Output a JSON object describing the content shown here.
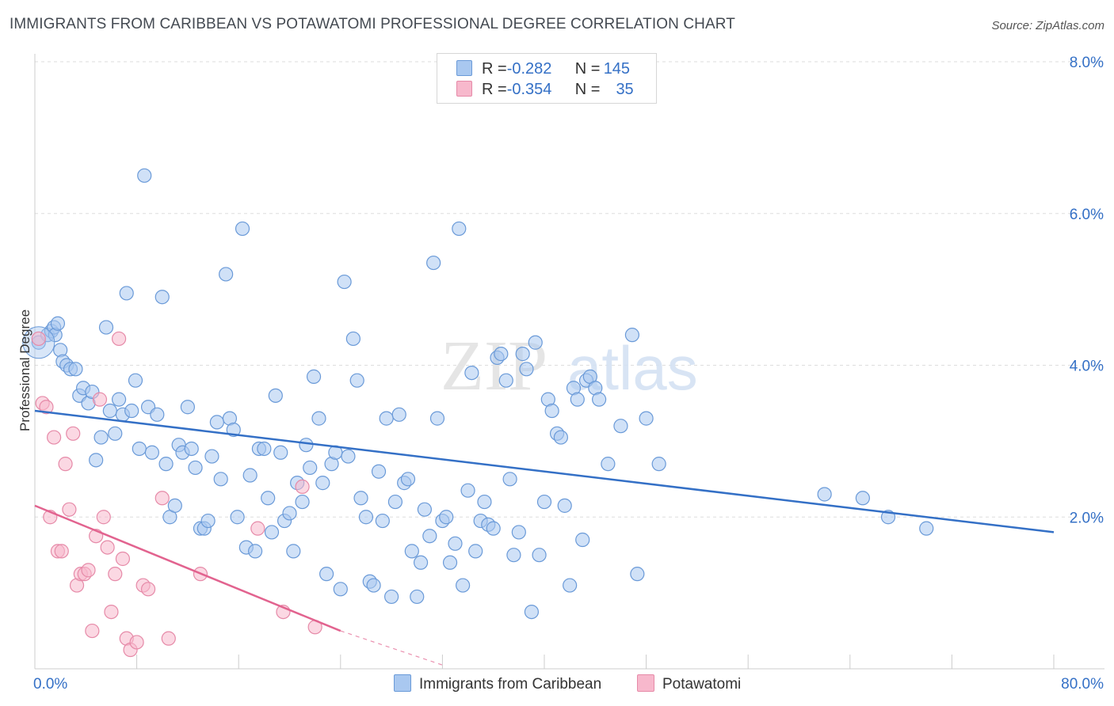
{
  "title": "IMMIGRANTS FROM CARIBBEAN VS POTAWATOMI PROFESSIONAL DEGREE CORRELATION CHART",
  "source": "Source: ZipAtlas.com",
  "watermark": {
    "zip": "ZIP",
    "atlas": "atlas"
  },
  "legend": {
    "rows": [
      {
        "r_label": "R = ",
        "r_value": "-0.282",
        "n_label": "N = ",
        "n_value": "145"
      },
      {
        "r_label": "R = ",
        "r_value": "-0.354",
        "n_label": "N = ",
        "n_value": "35"
      }
    ]
  },
  "colors": {
    "caribbean_fill": "#a9c8f0",
    "caribbean_stroke": "#6a9ad8",
    "caribbean_line": "#3470c6",
    "potawatomi_fill": "#f7b8cc",
    "potawatomi_stroke": "#e68aa8",
    "potawatomi_line": "#e2638f",
    "tick_label": "#3470c6",
    "grid": "#dddddd"
  },
  "chart_data": {
    "type": "scatter",
    "title": "IMMIGRANTS FROM CARIBBEAN VS POTAWATOMI PROFESSIONAL DEGREE CORRELATION CHART",
    "xlabel": "",
    "ylabel": "Professional Degree",
    "xlim": [
      0,
      80
    ],
    "ylim": [
      0,
      8
    ],
    "x_tick_labels": [
      "0.0%",
      "80.0%"
    ],
    "y_ticks": [
      2,
      4,
      6,
      8
    ],
    "y_tick_labels": [
      "2.0%",
      "4.0%",
      "6.0%",
      "8.0%"
    ],
    "grid": true,
    "legend_position": "top-center",
    "series": [
      {
        "name": "Immigrants from Caribbean",
        "trend": {
          "x": [
            0,
            80
          ],
          "y": [
            3.4,
            1.8
          ]
        },
        "points": [
          [
            0.3,
            4.3
          ],
          [
            1.0,
            4.4
          ],
          [
            1.3,
            4.45
          ],
          [
            1.5,
            4.5
          ],
          [
            1.6,
            4.4
          ],
          [
            1.8,
            4.55
          ],
          [
            2.0,
            4.2
          ],
          [
            2.2,
            4.05
          ],
          [
            2.5,
            4.0
          ],
          [
            2.8,
            3.95
          ],
          [
            3.2,
            3.95
          ],
          [
            3.5,
            3.6
          ],
          [
            3.8,
            3.7
          ],
          [
            4.2,
            3.5
          ],
          [
            4.5,
            3.65
          ],
          [
            4.8,
            2.75
          ],
          [
            5.2,
            3.05
          ],
          [
            5.6,
            4.5
          ],
          [
            5.9,
            3.4
          ],
          [
            6.3,
            3.1
          ],
          [
            6.6,
            3.55
          ],
          [
            6.9,
            3.35
          ],
          [
            7.2,
            4.95
          ],
          [
            7.6,
            3.4
          ],
          [
            7.9,
            3.8
          ],
          [
            8.2,
            2.9
          ],
          [
            8.6,
            6.5
          ],
          [
            8.9,
            3.45
          ],
          [
            9.2,
            2.85
          ],
          [
            9.6,
            3.35
          ],
          [
            10.0,
            4.9
          ],
          [
            10.3,
            2.7
          ],
          [
            10.6,
            2.0
          ],
          [
            11.0,
            2.15
          ],
          [
            11.3,
            2.95
          ],
          [
            11.6,
            2.85
          ],
          [
            12.0,
            3.45
          ],
          [
            12.3,
            2.9
          ],
          [
            12.6,
            2.65
          ],
          [
            13.0,
            1.85
          ],
          [
            13.3,
            1.85
          ],
          [
            13.6,
            1.95
          ],
          [
            13.9,
            2.8
          ],
          [
            14.3,
            3.25
          ],
          [
            14.6,
            2.5
          ],
          [
            15.0,
            5.2
          ],
          [
            15.3,
            3.3
          ],
          [
            15.6,
            3.15
          ],
          [
            15.9,
            2.0
          ],
          [
            16.3,
            5.8
          ],
          [
            16.6,
            1.6
          ],
          [
            16.9,
            2.55
          ],
          [
            17.3,
            1.55
          ],
          [
            17.6,
            2.9
          ],
          [
            18.0,
            2.9
          ],
          [
            18.3,
            2.25
          ],
          [
            18.6,
            1.8
          ],
          [
            18.9,
            3.6
          ],
          [
            19.3,
            2.85
          ],
          [
            19.6,
            1.95
          ],
          [
            20.0,
            2.05
          ],
          [
            20.3,
            1.55
          ],
          [
            20.6,
            2.45
          ],
          [
            21.0,
            2.2
          ],
          [
            21.3,
            2.95
          ],
          [
            21.6,
            2.65
          ],
          [
            21.9,
            3.85
          ],
          [
            22.3,
            3.3
          ],
          [
            22.6,
            2.45
          ],
          [
            22.9,
            1.25
          ],
          [
            23.3,
            2.7
          ],
          [
            23.6,
            2.85
          ],
          [
            24.0,
            1.05
          ],
          [
            24.3,
            5.1
          ],
          [
            24.6,
            2.8
          ],
          [
            25.0,
            4.35
          ],
          [
            25.3,
            3.8
          ],
          [
            25.6,
            2.25
          ],
          [
            26.0,
            2.0
          ],
          [
            26.3,
            1.15
          ],
          [
            26.6,
            1.1
          ],
          [
            27.0,
            2.6
          ],
          [
            27.3,
            1.95
          ],
          [
            27.6,
            3.3
          ],
          [
            28.0,
            0.95
          ],
          [
            28.3,
            2.2
          ],
          [
            28.6,
            3.35
          ],
          [
            29.0,
            2.45
          ],
          [
            29.3,
            2.5
          ],
          [
            29.6,
            1.55
          ],
          [
            30.0,
            0.95
          ],
          [
            30.3,
            1.4
          ],
          [
            30.6,
            2.1
          ],
          [
            31.0,
            1.75
          ],
          [
            31.3,
            5.35
          ],
          [
            31.6,
            3.3
          ],
          [
            32.0,
            1.95
          ],
          [
            32.3,
            2.0
          ],
          [
            32.6,
            1.4
          ],
          [
            33.0,
            1.65
          ],
          [
            33.3,
            5.8
          ],
          [
            33.6,
            1.1
          ],
          [
            34.0,
            2.35
          ],
          [
            34.3,
            3.9
          ],
          [
            34.6,
            1.55
          ],
          [
            35.0,
            1.95
          ],
          [
            35.3,
            2.2
          ],
          [
            35.6,
            1.9
          ],
          [
            36.0,
            1.85
          ],
          [
            36.3,
            4.1
          ],
          [
            36.6,
            4.15
          ],
          [
            37.0,
            3.8
          ],
          [
            37.3,
            2.5
          ],
          [
            37.6,
            1.5
          ],
          [
            38.0,
            1.8
          ],
          [
            38.3,
            4.15
          ],
          [
            38.6,
            3.95
          ],
          [
            39.0,
            0.75
          ],
          [
            39.3,
            4.3
          ],
          [
            39.6,
            1.5
          ],
          [
            40.0,
            2.2
          ],
          [
            40.3,
            3.55
          ],
          [
            40.6,
            3.4
          ],
          [
            41.0,
            3.1
          ],
          [
            41.3,
            3.05
          ],
          [
            41.6,
            2.15
          ],
          [
            42.0,
            1.1
          ],
          [
            42.3,
            3.7
          ],
          [
            42.6,
            3.55
          ],
          [
            43.0,
            1.7
          ],
          [
            43.3,
            3.8
          ],
          [
            43.6,
            3.85
          ],
          [
            44.0,
            3.7
          ],
          [
            44.3,
            3.55
          ],
          [
            45.0,
            2.7
          ],
          [
            46.0,
            3.2
          ],
          [
            46.9,
            4.4
          ],
          [
            47.3,
            1.25
          ],
          [
            48.0,
            3.3
          ],
          [
            49.0,
            2.7
          ],
          [
            62.0,
            2.3
          ],
          [
            65.0,
            2.25
          ],
          [
            67.0,
            2.0
          ],
          [
            70.0,
            1.85
          ]
        ]
      },
      {
        "name": "Potawatomi",
        "trend": {
          "x": [
            0,
            24
          ],
          "y": [
            2.15,
            0.5
          ]
        },
        "trend_dashed": {
          "x": [
            24,
            32
          ],
          "y": [
            0.5,
            0.05
          ]
        },
        "points": [
          [
            0.3,
            4.35
          ],
          [
            0.6,
            3.5
          ],
          [
            0.9,
            3.45
          ],
          [
            1.2,
            2.0
          ],
          [
            1.5,
            3.05
          ],
          [
            1.8,
            1.55
          ],
          [
            2.1,
            1.55
          ],
          [
            2.4,
            2.7
          ],
          [
            2.7,
            2.1
          ],
          [
            3.0,
            3.1
          ],
          [
            3.3,
            1.1
          ],
          [
            3.6,
            1.25
          ],
          [
            3.9,
            1.25
          ],
          [
            4.2,
            1.3
          ],
          [
            4.5,
            0.5
          ],
          [
            4.8,
            1.75
          ],
          [
            5.1,
            3.55
          ],
          [
            5.4,
            2.0
          ],
          [
            5.7,
            1.6
          ],
          [
            6.0,
            0.75
          ],
          [
            6.3,
            1.25
          ],
          [
            6.6,
            4.35
          ],
          [
            6.9,
            1.45
          ],
          [
            7.2,
            0.4
          ],
          [
            7.5,
            0.25
          ],
          [
            8.0,
            0.35
          ],
          [
            8.5,
            1.1
          ],
          [
            8.9,
            1.05
          ],
          [
            10.0,
            2.25
          ],
          [
            10.5,
            0.4
          ],
          [
            13.0,
            1.25
          ],
          [
            17.5,
            1.85
          ],
          [
            19.5,
            0.75
          ],
          [
            21.0,
            2.4
          ],
          [
            22.0,
            0.55
          ]
        ]
      }
    ]
  }
}
